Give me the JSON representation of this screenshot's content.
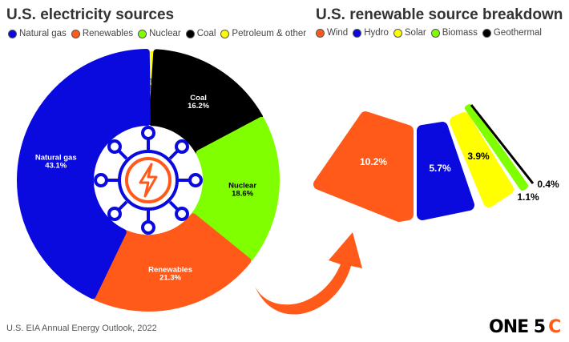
{
  "left_title": "U.S. electricity sources",
  "right_title": "U.S. renewable source breakdown",
  "source": "U.S. EIA Annual Energy Outlook, 2022",
  "logo": {
    "main": "ONE 5",
    "accent": "C"
  },
  "chart_data": [
    {
      "type": "pie",
      "title": "U.S. electricity sources",
      "legend_position": "top",
      "categories": [
        "Petroleum & other",
        "Coal",
        "Nuclear",
        "Renewables",
        "Natural gas"
      ],
      "values": [
        0.8,
        16.2,
        18.6,
        21.3,
        43.1
      ],
      "labels": [
        "0.8%",
        "16.2%",
        "18.6%",
        "21.3%",
        "43.1%"
      ],
      "colors": [
        "#ffff00",
        "#000000",
        "#80ff00",
        "#ff5a1a",
        "#0a0adf"
      ],
      "label_colors": [
        "#000000",
        "#ffffff",
        "#000000",
        "#ffffff",
        "#ffffff"
      ],
      "legend": [
        {
          "name": "Natural gas",
          "color": "#0a0adf"
        },
        {
          "name": "Renewables",
          "color": "#ff5a1a"
        },
        {
          "name": "Nuclear",
          "color": "#80ff00"
        },
        {
          "name": "Coal",
          "color": "#000000"
        },
        {
          "name": "Petroleum & other",
          "color": "#ffff00"
        }
      ]
    },
    {
      "type": "pie",
      "title": "U.S. renewable source breakdown",
      "legend_position": "top",
      "categories": [
        "Wind",
        "Hydro",
        "Solar",
        "Biomass",
        "Geothermal"
      ],
      "values": [
        10.2,
        5.7,
        3.9,
        1.1,
        0.4
      ],
      "labels": [
        "10.2%",
        "5.7%",
        "3.9%",
        "1.1%",
        "0.4%"
      ],
      "colors": [
        "#ff5a1a",
        "#0a0adf",
        "#ffff00",
        "#80ff00",
        "#000000"
      ],
      "legend": [
        {
          "name": "Wind",
          "color": "#ff5a1a"
        },
        {
          "name": "Hydro",
          "color": "#0a0adf"
        },
        {
          "name": "Solar",
          "color": "#ffff00"
        },
        {
          "name": "Biomass",
          "color": "#80ff00"
        },
        {
          "name": "Geothermal",
          "color": "#000000"
        }
      ]
    }
  ]
}
